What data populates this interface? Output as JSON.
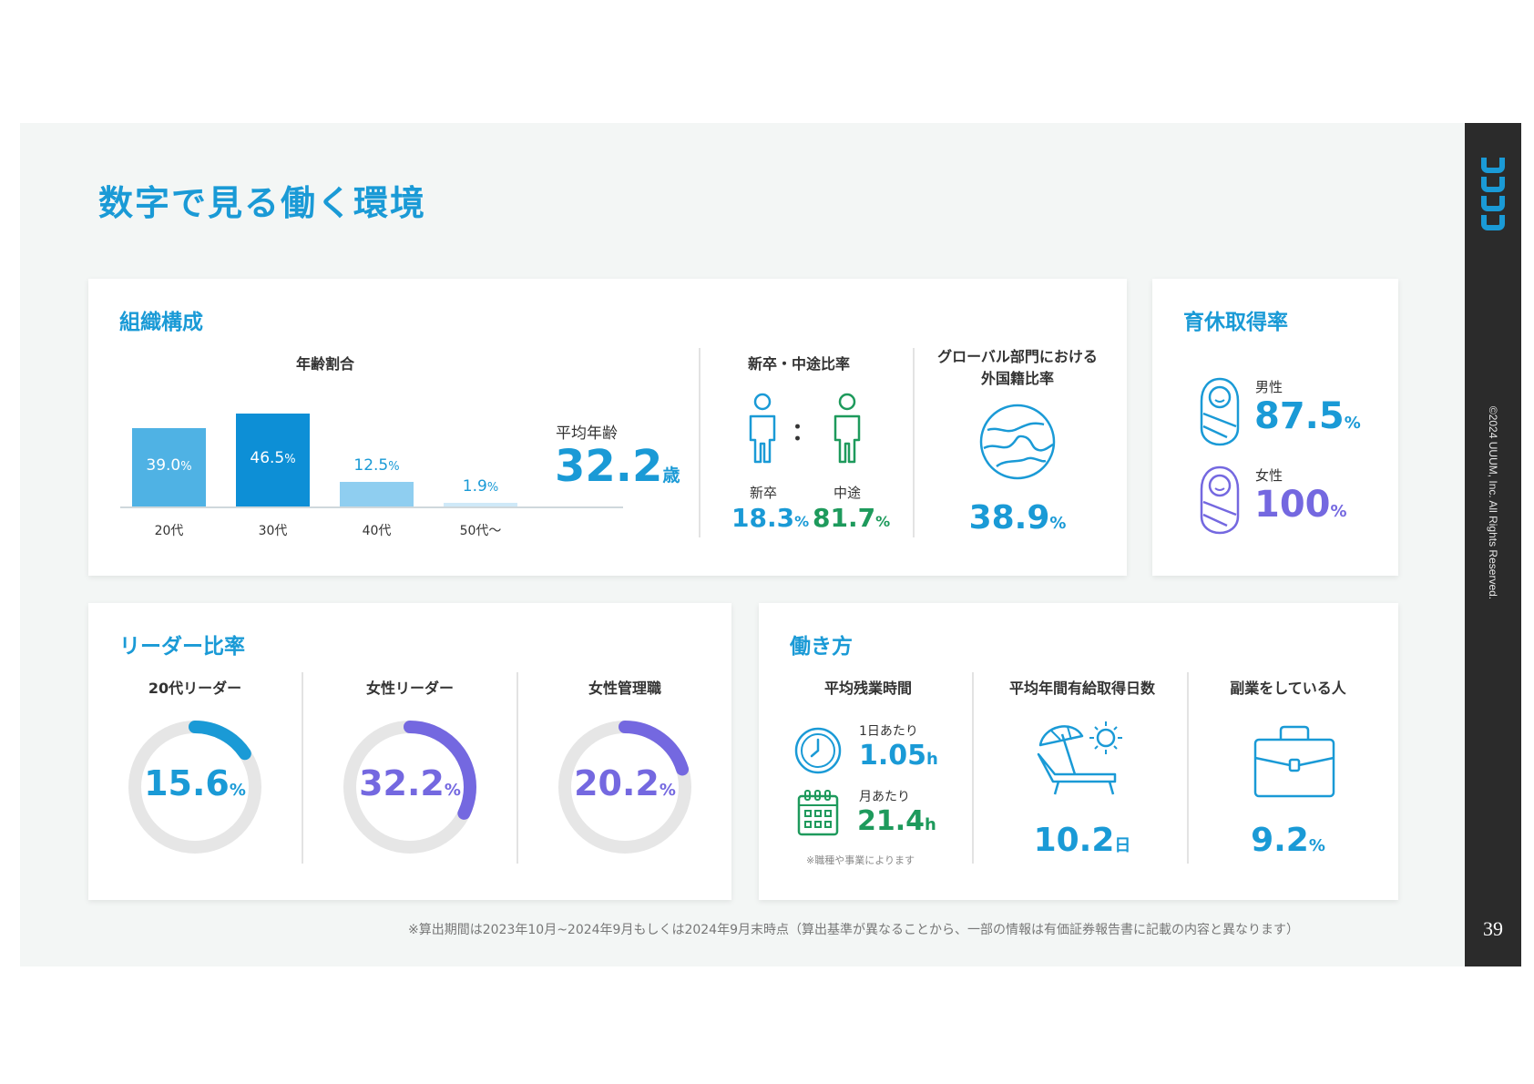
{
  "page": {
    "title": "数字で見る働く環境",
    "copyright": "©2024 UUUM, Inc. All Rights Reserved.",
    "page_number": "39",
    "footnote": "※算出期間は2023年10月~2024年9月もしくは2024年9月末時点（算出基準が異なることから、一部の情報は有価証券報告書に記載の内容と異なります）"
  },
  "org": {
    "title": "組織構成",
    "age_title": "年齢割合",
    "avg_age_label": "平均年齢",
    "avg_age_value": "32.2",
    "avg_age_unit": "歳",
    "ratio_title": "新卒・中途比率",
    "colon": "：",
    "new_grad_label": "新卒",
    "new_grad_value": "18.3",
    "mid_career_label": "中途",
    "mid_career_value": "81.7",
    "pct": "%",
    "global_title_1": "グローバル部門における",
    "global_title_2": "外国籍比率",
    "global_value": "38.9"
  },
  "chart_data": {
    "type": "bar",
    "title": "年齢割合",
    "categories": [
      "20代",
      "30代",
      "40代",
      "50代～"
    ],
    "values": [
      39.0,
      46.5,
      12.5,
      1.9
    ],
    "labels": [
      "39.0",
      "46.5",
      "12.5",
      "1.9"
    ],
    "unit": "%",
    "colors": [
      "#4fb2e4",
      "#0d8fd6",
      "#8fcef0",
      "#cfe9f8"
    ]
  },
  "leave": {
    "title": "育休取得率",
    "male_label": "男性",
    "male_value": "87.5",
    "female_label": "女性",
    "female_value": "100",
    "pct": "%"
  },
  "leaders": {
    "title": "リーダー比率",
    "pct": "%",
    "items": [
      {
        "label": "20代リーダー",
        "value": "15.6",
        "fraction": 0.156,
        "color": "#1a9ad6"
      },
      {
        "label": "女性リーダー",
        "value": "32.2",
        "fraction": 0.322,
        "color": "#7468e0"
      },
      {
        "label": "女性管理職",
        "value": "20.2",
        "fraction": 0.202,
        "color": "#7468e0"
      }
    ]
  },
  "work": {
    "title": "働き方",
    "overtime_title": "平均残業時間",
    "per_day_label": "1日あたり",
    "per_day_value": "1.05",
    "per_month_label": "月あたり",
    "per_month_value": "21.4",
    "hour_unit": "h",
    "overtime_note": "※職種や事業によります",
    "leave_title": "平均年間有給取得日数",
    "leave_value": "10.2",
    "leave_unit": "日",
    "side_title": "副業をしている人",
    "side_value": "9.2",
    "pct": "%"
  },
  "colors": {
    "blue": "#1a9ad6",
    "green": "#1e9a5c",
    "purple": "#7468e0",
    "ring_track": "#e6e6e6"
  }
}
